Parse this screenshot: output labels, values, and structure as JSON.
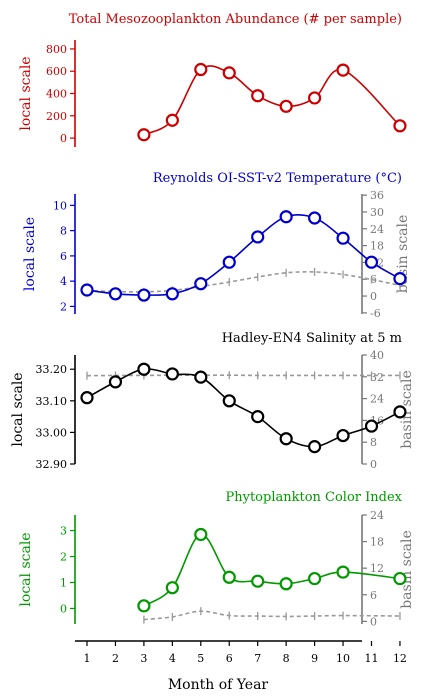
{
  "chart_data": [
    {
      "type": "line",
      "title": "Total Mesozooplankton Abundance (# per sample)",
      "ylabel": "local scale",
      "ylim": [
        -80,
        880
      ],
      "yticks": [
        0,
        200,
        400,
        600,
        800
      ],
      "ytick_labels": [
        "0",
        "200",
        "400",
        "600",
        "800"
      ],
      "color": "#cc0000",
      "series": [
        {
          "values": [
            null,
            null,
            30,
            160,
            615,
            585,
            380,
            285,
            360,
            610,
            null,
            110
          ]
        }
      ]
    },
    {
      "type": "line",
      "title": "Reynolds OI-SST-v2 Temperature (°C)",
      "ylabel": "local scale",
      "ylabel_right": "basin scale",
      "ylim": [
        1.4,
        10.9
      ],
      "yticks": [
        2,
        4,
        6,
        8,
        10
      ],
      "ytick_labels": [
        "2",
        "4",
        "6",
        "8",
        "10"
      ],
      "ylim_right": [
        -6.4,
        36.4
      ],
      "yticks_right": [
        -6,
        0,
        6,
        12,
        18,
        24,
        30,
        36
      ],
      "ytick_labels_right": [
        "-6",
        "0",
        "6",
        "12",
        "18",
        "24",
        "30",
        "36"
      ],
      "color": "#0000cc",
      "series": [
        {
          "values": [
            3.3,
            3.0,
            2.9,
            3.0,
            3.8,
            5.5,
            7.5,
            9.1,
            9.0,
            7.4,
            5.5,
            4.2
          ]
        },
        {
          "values": [
            2.0,
            1.6,
            1.5,
            2.0,
            3.4,
            5.0,
            6.8,
            8.3,
            8.6,
            7.7,
            5.9,
            3.8
          ]
        }
      ]
    },
    {
      "type": "line",
      "title": "Hadley-EN4 Salinity at 5 m",
      "ylabel": "local scale",
      "ylabel_right": "basin scale",
      "ylim": [
        32.9,
        33.245
      ],
      "yticks": [
        32.9,
        33.0,
        33.1,
        33.2
      ],
      "ytick_labels": [
        "32.90",
        "33.00",
        "33.10",
        "33.20"
      ],
      "ylim_right": [
        0,
        40
      ],
      "yticks_right": [
        0,
        8,
        16,
        24,
        32,
        40
      ],
      "ytick_labels_right": [
        "0",
        "8",
        "16",
        "24",
        "32",
        "40"
      ],
      "color": "#000000",
      "series": [
        {
          "values": [
            33.11,
            33.16,
            33.2,
            33.185,
            33.175,
            33.1,
            33.05,
            32.98,
            32.955,
            32.99,
            33.02,
            33.065
          ]
        },
        {
          "values": [
            32.4,
            32.5,
            32.5,
            32.6,
            32.6,
            32.6,
            32.5,
            32.5,
            32.5,
            32.5,
            32.5,
            32.5
          ]
        }
      ]
    },
    {
      "type": "line",
      "title": "Phytoplankton Color Index",
      "ylabel": "local scale",
      "ylabel_right": "basin scale",
      "xlabel": "Month of Year",
      "categories": [
        "1",
        "2",
        "3",
        "4",
        "5",
        "6",
        "7",
        "8",
        "9",
        "10",
        "11",
        "12"
      ],
      "ylim": [
        -0.6,
        3.6
      ],
      "yticks": [
        0,
        1,
        2,
        3
      ],
      "ytick_labels": [
        "0",
        "1",
        "2",
        "3"
      ],
      "ylim_right": [
        -0.6,
        24
      ],
      "yticks_right": [
        0,
        6,
        12,
        18,
        24
      ],
      "ytick_labels_right": [
        "0",
        "6",
        "12",
        "18",
        "24"
      ],
      "color": "#009900",
      "series": [
        {
          "values": [
            null,
            null,
            0.1,
            0.8,
            2.85,
            1.2,
            1.05,
            0.95,
            1.15,
            1.4,
            null,
            1.15
          ]
        },
        {
          "values": [
            null,
            null,
            0.4,
            1.0,
            2.3,
            1.3,
            1.2,
            1.1,
            1.2,
            1.3,
            null,
            1.2
          ]
        }
      ]
    }
  ]
}
